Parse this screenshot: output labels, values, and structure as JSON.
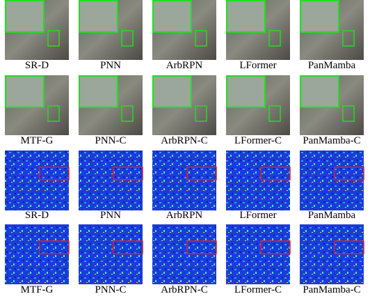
{
  "panels": [
    [
      "SR-D",
      "PNN",
      "ArbRPN",
      "LFormer",
      "PanMamba"
    ],
    [
      "MTF-G",
      "PNN-C",
      "ArbRPN-C",
      "LFormer-C",
      "PanMamba-C"
    ],
    [
      "SR-D",
      "PNN",
      "ArbRPN",
      "LFormer",
      "PanMamba"
    ],
    [
      "MTF-G",
      "PNN-C",
      "ArbRPN-C",
      "LFormer-C",
      "PanMamba-C"
    ]
  ]
}
